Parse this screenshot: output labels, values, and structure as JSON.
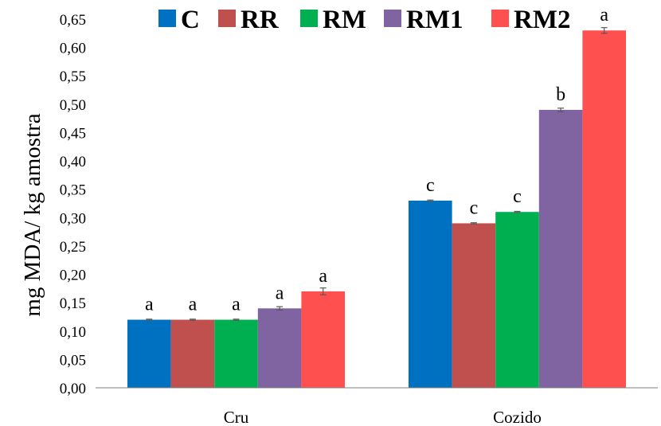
{
  "chart_data": {
    "type": "bar",
    "ylabel": "mg MDA/ kg amostra",
    "xlabel": "",
    "ylim": [
      0,
      0.65
    ],
    "ytick_step": 0.05,
    "ytick_labels": [
      "0,00",
      "0,05",
      "0,10",
      "0,15",
      "0,20",
      "0,25",
      "0,30",
      "0,35",
      "0,40",
      "0,45",
      "0,50",
      "0,55",
      "0,60",
      "0,65"
    ],
    "categories": [
      "Cru",
      "Cozido"
    ],
    "legend_position": "top",
    "grid": false,
    "series": [
      {
        "name": "C",
        "color": "#0070c0",
        "values": [
          0.12,
          0.33
        ],
        "errors": [
          0.001,
          0.001
        ],
        "labels": [
          "a",
          "c"
        ]
      },
      {
        "name": "RR",
        "color": "#c0504d",
        "values": [
          0.12,
          0.29
        ],
        "errors": [
          0.001,
          0.001
        ],
        "labels": [
          "a",
          "c"
        ]
      },
      {
        "name": "RM",
        "color": "#00b050",
        "values": [
          0.12,
          0.31
        ],
        "errors": [
          0.001,
          0.001
        ],
        "labels": [
          "a",
          "c"
        ]
      },
      {
        "name": "RM1",
        "color": "#8064a2",
        "values": [
          0.14,
          0.49
        ],
        "errors": [
          0.003,
          0.003
        ],
        "labels": [
          "a",
          "b"
        ]
      },
      {
        "name": "RM2",
        "color": "#ff5050",
        "values": [
          0.17,
          0.63
        ],
        "errors": [
          0.006,
          0.005
        ],
        "labels": [
          "a",
          "a"
        ]
      }
    ]
  }
}
